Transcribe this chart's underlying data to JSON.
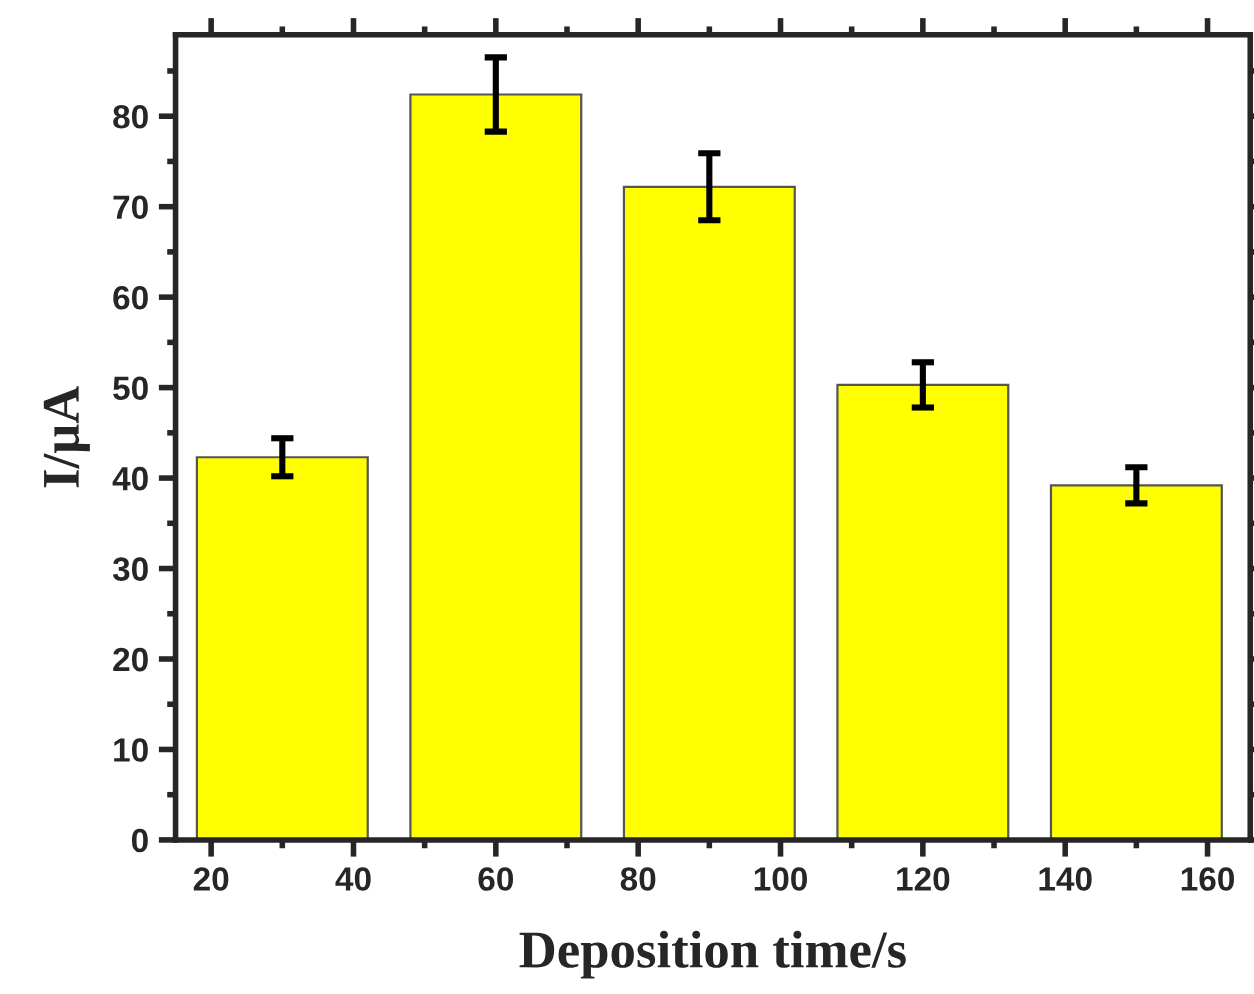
{
  "chart_data": {
    "type": "bar",
    "xlabel": "Deposition time/s",
    "ylabel": "I/μA",
    "x": [
      30,
      60,
      90,
      120,
      150
    ],
    "values": [
      42.3,
      82.4,
      72.2,
      50.3,
      39.2
    ],
    "color": "#ffff00",
    "errors": [
      2.1,
      4.1,
      3.7,
      2.5,
      2.0
    ],
    "xlim": [
      15,
      166
    ],
    "xticks": [
      20,
      40,
      60,
      80,
      100,
      120,
      140,
      160
    ],
    "ylim": [
      0,
      89
    ],
    "yticks": [
      0,
      10,
      20,
      30,
      40,
      50,
      60,
      70,
      80
    ],
    "grid": false,
    "legend": false
  }
}
